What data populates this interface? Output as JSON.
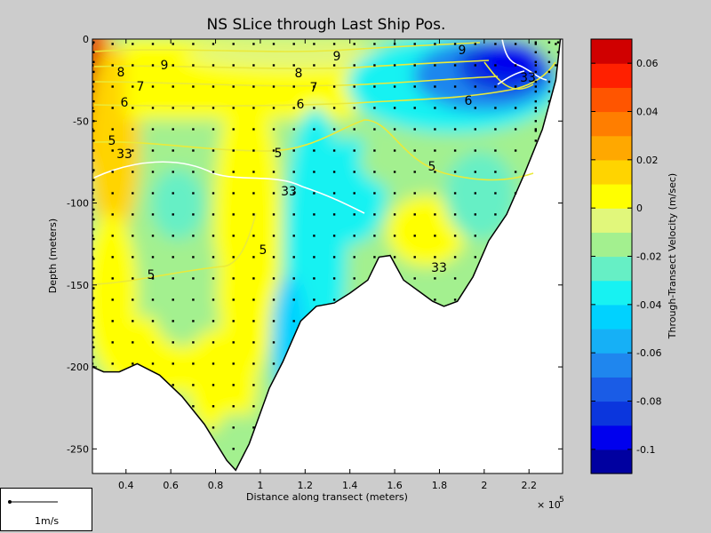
{
  "chart_data": [
    {
      "type": "heatmap",
      "title": "NS SLice through Last Ship Pos.",
      "xlabel": "Distance along transect (meters)",
      "ylabel": "Depth (meters)",
      "x_multiplier_label": "× 10",
      "x_multiplier_exponent": "5",
      "xlim": [
        25000,
        235000
      ],
      "ylim": [
        -265,
        0
      ],
      "x_ticks": [
        40000,
        60000,
        80000,
        100000,
        120000,
        140000,
        160000,
        180000,
        200000,
        220000
      ],
      "x_tick_labels": [
        "0.4",
        "0.6",
        "0.8",
        "1",
        "1.2",
        "1.4",
        "1.6",
        "1.8",
        "2",
        "2.2"
      ],
      "y_ticks": [
        0,
        -50,
        -100,
        -150,
        -200,
        -250
      ],
      "y_tick_labels": [
        "0",
        "-50",
        "-100",
        "-150",
        "-200",
        "-250"
      ],
      "bottom_profile": [
        [
          25000,
          -200
        ],
        [
          30000,
          -203
        ],
        [
          37000,
          -203
        ],
        [
          45000,
          -198
        ],
        [
          55000,
          -205
        ],
        [
          65000,
          -218
        ],
        [
          75000,
          -235
        ],
        [
          85000,
          -257
        ],
        [
          89000,
          -263
        ],
        [
          95000,
          -247
        ],
        [
          104000,
          -213
        ],
        [
          110000,
          -197
        ],
        [
          118000,
          -172
        ],
        [
          125000,
          -163
        ],
        [
          133000,
          -161
        ],
        [
          140000,
          -155
        ],
        [
          148000,
          -147
        ],
        [
          153000,
          -133
        ],
        [
          158000,
          -132
        ],
        [
          164000,
          -147
        ],
        [
          172000,
          -155
        ],
        [
          177000,
          -160
        ],
        [
          182000,
          -163
        ],
        [
          188000,
          -160
        ],
        [
          195000,
          -145
        ],
        [
          202000,
          -123
        ],
        [
          210000,
          -107
        ],
        [
          218000,
          -82
        ],
        [
          226000,
          -55
        ],
        [
          232000,
          -25
        ],
        [
          234000,
          0
        ]
      ],
      "contour_labels": {
        "salinity_yellow": [
          "9",
          "8",
          "7",
          "6",
          "5",
          "9",
          "8",
          "7",
          "6",
          "5",
          "5",
          "5",
          "5",
          "9",
          "6"
        ],
        "density_white": [
          "33",
          "33",
          "33",
          "33"
        ]
      },
      "grid": false
    },
    {
      "type": "colorbar",
      "label": "Through-Transect Velocity (m/sec)",
      "range": [
        -0.11,
        0.07
      ],
      "levels": [
        {
          "from": -0.11,
          "to": -0.1,
          "color": "#0000a0"
        },
        {
          "from": -0.1,
          "to": -0.09,
          "color": "#0000ee"
        },
        {
          "from": -0.09,
          "to": -0.08,
          "color": "#0b36dd"
        },
        {
          "from": -0.08,
          "to": -0.07,
          "color": "#1a5ce6"
        },
        {
          "from": -0.07,
          "to": -0.06,
          "color": "#1f86ee"
        },
        {
          "from": -0.06,
          "to": -0.05,
          "color": "#16b0f6"
        },
        {
          "from": -0.05,
          "to": -0.04,
          "color": "#00d2ff"
        },
        {
          "from": -0.04,
          "to": -0.03,
          "color": "#17f2f2"
        },
        {
          "from": -0.03,
          "to": -0.02,
          "color": "#66efc5"
        },
        {
          "from": -0.02,
          "to": -0.01,
          "color": "#a3f08f"
        },
        {
          "from": -0.01,
          "to": 0.0,
          "color": "#e1f77b"
        },
        {
          "from": 0.0,
          "to": 0.01,
          "color": "#ffff00"
        },
        {
          "from": 0.01,
          "to": 0.02,
          "color": "#ffd400"
        },
        {
          "from": 0.02,
          "to": 0.03,
          "color": "#ffa800"
        },
        {
          "from": 0.03,
          "to": 0.04,
          "color": "#ff7e00"
        },
        {
          "from": 0.04,
          "to": 0.05,
          "color": "#ff5500"
        },
        {
          "from": 0.05,
          "to": 0.06,
          "color": "#ff2000"
        },
        {
          "from": 0.06,
          "to": 0.07,
          "color": "#d00000"
        }
      ],
      "ticks": [
        0.06,
        0.04,
        0.02,
        0,
        -0.02,
        -0.04,
        -0.06,
        -0.08,
        -0.1
      ],
      "tick_labels": [
        "0.06",
        "0.04",
        "0.02",
        "0",
        "-0.02",
        "-0.04",
        "-0.06",
        "-0.08",
        "-0.1"
      ]
    }
  ],
  "scale_legend": {
    "label": "1m/s"
  }
}
